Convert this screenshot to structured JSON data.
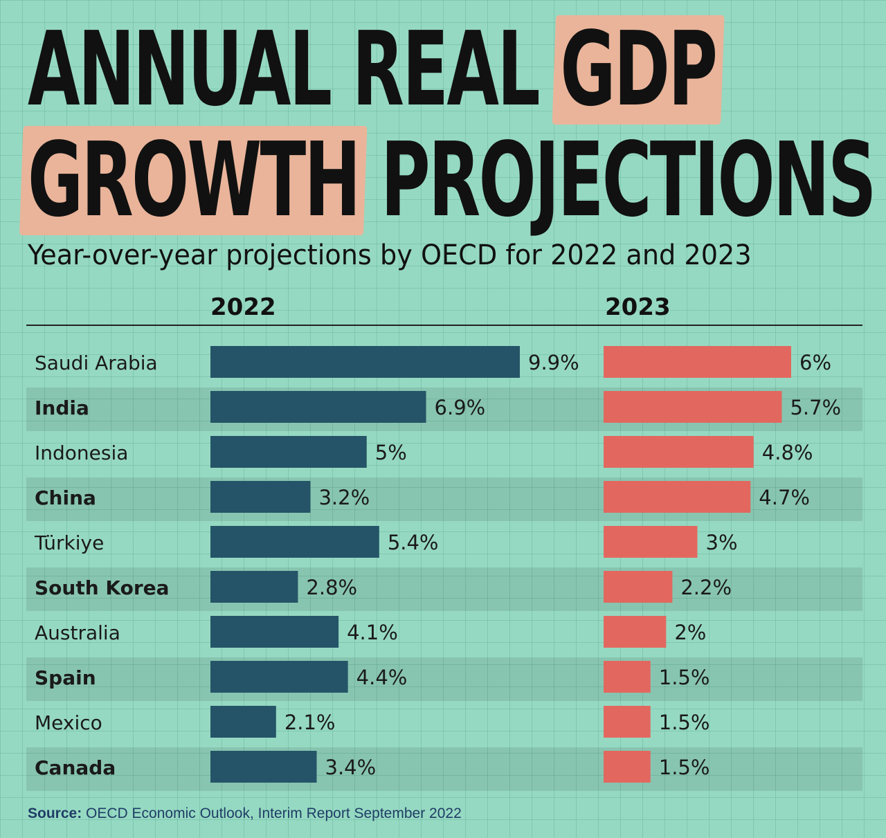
{
  "title": {
    "line1_a": "ANNUAL REAL ",
    "line1_hl": "GDP",
    "line2_hl": "GROWTH",
    "line2_b": " PROJECTIONS"
  },
  "subtitle": "Year-over-year projections by OECD for 2022 and 2023",
  "source": {
    "label": "Source:",
    "text": " OECD Economic Outlook, Interim Report September 2022"
  },
  "colors": {
    "bar_2022": "#255468",
    "bar_2023": "#e2685f",
    "background": "#96d9c2",
    "highlight": "#e9b49a"
  },
  "chart_data": {
    "type": "bar",
    "title": "ANNUAL REAL GDP GROWTH PROJECTIONS",
    "subtitle": "Year-over-year projections by OECD for 2022 and 2023",
    "unit": "%",
    "categories": [
      "Saudi Arabia",
      "India",
      "Indonesia",
      "China",
      "Türkiye",
      "South Korea",
      "Australia",
      "Spain",
      "Mexico",
      "Canada"
    ],
    "bold_rows": [
      false,
      true,
      false,
      true,
      false,
      true,
      false,
      true,
      false,
      true
    ],
    "series": [
      {
        "name": "2022",
        "values": [
          9.9,
          6.9,
          5,
          3.2,
          5.4,
          2.8,
          4.1,
          4.4,
          2.1,
          3.4
        ],
        "labels": [
          "9.9%",
          "6.9%",
          "5%",
          "3.2%",
          "5.4%",
          "2.8%",
          "4.1%",
          "4.4%",
          "2.1%",
          "3.4%"
        ]
      },
      {
        "name": "2023",
        "values": [
          6,
          5.7,
          4.8,
          4.7,
          3,
          2.2,
          2,
          1.5,
          1.5,
          1.5
        ],
        "labels": [
          "6%",
          "5.7%",
          "4.8%",
          "4.7%",
          "3%",
          "2.2%",
          "2%",
          "1.5%",
          "1.5%",
          "1.5%"
        ]
      }
    ]
  }
}
